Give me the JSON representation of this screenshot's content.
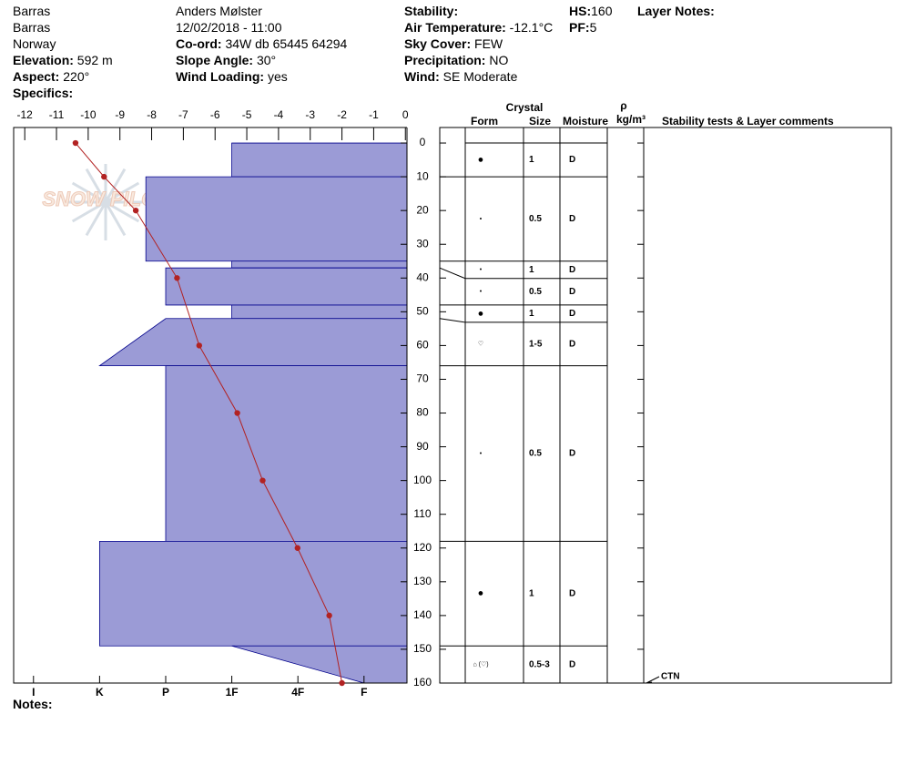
{
  "header": {
    "site": "Barras",
    "location": "Barras",
    "country": "Norway",
    "elevation": {
      "label": "Elevation:",
      "value": "592 m"
    },
    "aspect": {
      "label": "Aspect:",
      "value": "220°"
    },
    "specifics": "Specifics:",
    "observer": "Anders Mølster",
    "datetime": "12/02/2018 - 11:00",
    "coord": {
      "label": "Co-ord:",
      "value": "34W db 65445 64294"
    },
    "slope": {
      "label": "Slope Angle:",
      "value": "30°"
    },
    "wind_loading": {
      "label": "Wind Loading:",
      "value": "yes"
    },
    "stability": "Stability:",
    "air_temp": {
      "label": "Air Temperature:",
      "value": "-12.1°C"
    },
    "sky": {
      "label": "Sky Cover:",
      "value": "FEW"
    },
    "precip": {
      "label": "Precipitation:",
      "value": "NO"
    },
    "wind": {
      "label": "Wind:",
      "value": "SE Moderate"
    },
    "hs": {
      "label": "HS:",
      "value": "160"
    },
    "pf": {
      "label": "PF:",
      "value": "5"
    },
    "layer_notes": "Layer Notes:"
  },
  "watermark": "SNOW PILOT",
  "chart_data": {
    "type": "line",
    "depth": [
      0,
      10,
      20,
      40,
      60,
      80,
      100,
      120,
      140,
      160
    ],
    "temperature": [
      -10.4,
      -9.5,
      -8.5,
      -7.2,
      -6.5,
      -5.3,
      -4.5,
      -3.4,
      -2.4,
      -2.0
    ],
    "color": "#b22222",
    "xlim": [
      -12.35,
      0.05
    ],
    "xticks": [
      -12,
      -11,
      -10,
      -9,
      -8,
      -7,
      -6,
      -5,
      -4,
      -3,
      -2,
      -1,
      0
    ],
    "ylim": [
      -4.6,
      160
    ],
    "yticks": [
      0,
      10,
      20,
      30,
      40,
      50,
      60,
      70,
      80,
      90,
      100,
      110,
      120,
      130,
      140,
      150,
      160
    ],
    "hardness_lim": [
      6.3,
      0.35
    ],
    "hardness_ticks": [
      {
        "value": 6,
        "label": "I"
      },
      {
        "value": 5,
        "label": "K"
      },
      {
        "value": 4,
        "label": "P"
      },
      {
        "value": 3,
        "label": "1F"
      },
      {
        "value": 2,
        "label": "4F"
      },
      {
        "value": 1,
        "label": "F"
      }
    ],
    "layer_color": "#9b9bd6",
    "layers": [
      {
        "top": 0,
        "bottom": 10,
        "hardness_top": 3,
        "hardness_bottom": 3
      },
      {
        "top": 10,
        "bottom": 35,
        "hardness_top": 4.3,
        "hardness_bottom": 4.3
      },
      {
        "top": 35,
        "bottom": 37,
        "hardness_top": 3,
        "hardness_bottom": 3
      },
      {
        "top": 37,
        "bottom": 48,
        "hardness_top": 4,
        "hardness_bottom": 4
      },
      {
        "top": 48,
        "bottom": 52,
        "hardness_top": 3,
        "hardness_bottom": 3
      },
      {
        "top": 52,
        "bottom": 66,
        "hardness_top": 4,
        "hardness_bottom": 5
      },
      {
        "top": 66,
        "bottom": 118,
        "hardness_top": 4,
        "hardness_bottom": 4
      },
      {
        "top": 118,
        "bottom": 149,
        "hardness_top": 5,
        "hardness_bottom": 5
      },
      {
        "top": 149,
        "bottom": 160,
        "hardness_top": 3,
        "hardness_bottom": 1
      }
    ]
  },
  "table": {
    "crystal": "Crystal",
    "form": "Form",
    "size": "Size",
    "moisture": "Moisture",
    "rho": "ρ",
    "density_unit": "kg/m³",
    "comments": "Stability tests & Layer comments",
    "rows": [
      {
        "form": "●",
        "size": "1",
        "moisture": "D"
      },
      {
        "form": "•",
        "size": "0.5",
        "moisture": "D"
      },
      {
        "form": "•",
        "size": "1",
        "moisture": "D"
      },
      {
        "form": "•",
        "size": "0.5",
        "moisture": "D"
      },
      {
        "form": "●",
        "size": "1",
        "moisture": "D"
      },
      {
        "form": "♡",
        "size": "1-5",
        "moisture": "D"
      },
      {
        "form": "•",
        "size": "0.5",
        "moisture": "D"
      },
      {
        "form": "●",
        "size": "1",
        "moisture": "D"
      },
      {
        "form": "⌂ (♡)",
        "size": "0.5-3",
        "moisture": "D"
      }
    ],
    "tests": [
      {
        "depth": 160,
        "text": "CTN"
      }
    ]
  },
  "notes": "Notes:"
}
